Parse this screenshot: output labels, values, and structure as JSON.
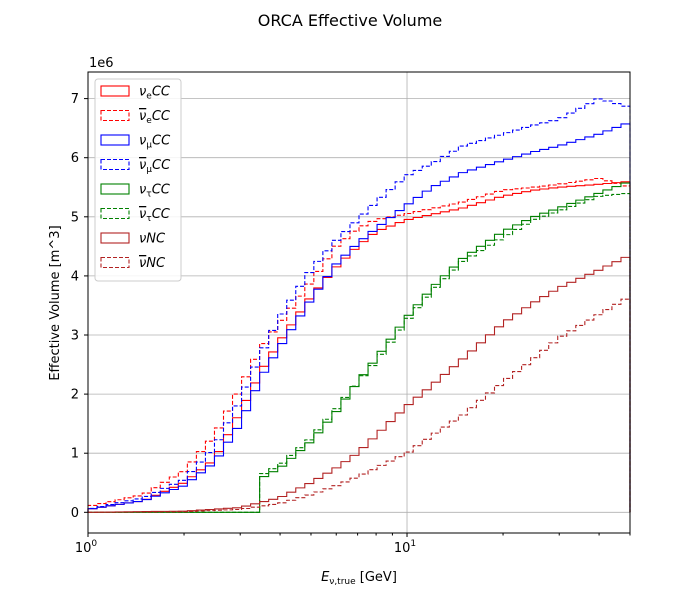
{
  "chart_data": {
    "type": "line",
    "title": "ORCA Effective Volume",
    "xlabel_main": "E",
    "xlabel_sub": "ν,true",
    "xlabel_unit": " [GeV]",
    "ylabel": "Effective Volume [m^3]",
    "y_multiplier_label": "1e6",
    "x_scale": "log",
    "xlim": [
      1,
      50
    ],
    "ylim": [
      -0.35,
      7.45
    ],
    "x_ticks": [
      {
        "value": 1,
        "base": "10",
        "exp": "0"
      },
      {
        "value": 10,
        "base": "10",
        "exp": "1"
      }
    ],
    "y_ticks": [
      0,
      1,
      2,
      3,
      4,
      5,
      6,
      7
    ],
    "grid": true,
    "legend_position": "upper-left",
    "series": [
      {
        "base": "ν",
        "sub": "e",
        "bar": false,
        "suffix": "CC",
        "color": "#ff0000",
        "dashed": false,
        "knots": [
          [
            1,
            0.05
          ],
          [
            1.5,
            0.2
          ],
          [
            2,
            0.5
          ],
          [
            2.5,
            0.9
          ],
          [
            3,
            1.7
          ],
          [
            3.5,
            2.4
          ],
          [
            4,
            2.9
          ],
          [
            5,
            3.65
          ],
          [
            6,
            4.15
          ],
          [
            7,
            4.5
          ],
          [
            8,
            4.75
          ],
          [
            10,
            4.95
          ],
          [
            15,
            5.15
          ],
          [
            20,
            5.35
          ],
          [
            25,
            5.45
          ],
          [
            30,
            5.5
          ],
          [
            40,
            5.55
          ],
          [
            50,
            5.6
          ]
        ]
      },
      {
        "base": "ν",
        "sub": "e",
        "bar": true,
        "suffix": "CC",
        "color": "#ff0000",
        "dashed": true,
        "knots": [
          [
            1,
            0.1
          ],
          [
            1.5,
            0.3
          ],
          [
            2,
            0.7
          ],
          [
            2.5,
            1.3
          ],
          [
            3,
            2.1
          ],
          [
            3.5,
            2.8
          ],
          [
            4,
            3.2
          ],
          [
            5,
            3.9
          ],
          [
            6,
            4.5
          ],
          [
            7,
            4.8
          ],
          [
            8,
            4.95
          ],
          [
            10,
            5.05
          ],
          [
            15,
            5.25
          ],
          [
            20,
            5.45
          ],
          [
            25,
            5.5
          ],
          [
            30,
            5.55
          ],
          [
            40,
            5.65
          ],
          [
            50,
            5.5
          ]
        ]
      },
      {
        "base": "ν",
        "sub": "μ",
        "bar": false,
        "suffix": "CC",
        "color": "#0000ff",
        "dashed": false,
        "knots": [
          [
            1,
            0.05
          ],
          [
            1.5,
            0.2
          ],
          [
            2,
            0.45
          ],
          [
            2.5,
            0.85
          ],
          [
            3,
            1.5
          ],
          [
            3.5,
            2.3
          ],
          [
            4,
            2.8
          ],
          [
            5,
            3.6
          ],
          [
            6,
            4.2
          ],
          [
            7,
            4.55
          ],
          [
            8,
            4.8
          ],
          [
            10,
            5.2
          ],
          [
            12,
            5.5
          ],
          [
            15,
            5.75
          ],
          [
            20,
            5.95
          ],
          [
            25,
            6.1
          ],
          [
            30,
            6.2
          ],
          [
            40,
            6.4
          ],
          [
            50,
            6.6
          ]
        ]
      },
      {
        "base": "ν",
        "sub": "μ",
        "bar": true,
        "suffix": "CC",
        "color": "#0000ff",
        "dashed": true,
        "knots": [
          [
            1,
            0.05
          ],
          [
            1.5,
            0.25
          ],
          [
            2,
            0.55
          ],
          [
            2.5,
            1.1
          ],
          [
            3,
            1.9
          ],
          [
            3.5,
            2.7
          ],
          [
            4,
            3.3
          ],
          [
            5,
            4.1
          ],
          [
            6,
            4.6
          ],
          [
            7,
            4.95
          ],
          [
            8,
            5.25
          ],
          [
            10,
            5.7
          ],
          [
            12,
            5.9
          ],
          [
            15,
            6.2
          ],
          [
            20,
            6.4
          ],
          [
            25,
            6.55
          ],
          [
            30,
            6.65
          ],
          [
            40,
            7.0
          ],
          [
            50,
            6.85
          ]
        ]
      },
      {
        "base": "ν",
        "sub": "τ",
        "bar": false,
        "suffix": "CC",
        "color": "#008000",
        "dashed": false,
        "knots": [
          [
            1,
            0.0
          ],
          [
            2,
            0.0
          ],
          [
            3.5,
            0.0
          ],
          [
            3.55,
            0.6
          ],
          [
            4,
            0.75
          ],
          [
            5,
            1.2
          ],
          [
            6,
            1.7
          ],
          [
            7,
            2.2
          ],
          [
            8,
            2.6
          ],
          [
            10,
            3.3
          ],
          [
            12,
            3.8
          ],
          [
            15,
            4.3
          ],
          [
            20,
            4.75
          ],
          [
            25,
            5.0
          ],
          [
            30,
            5.15
          ],
          [
            40,
            5.4
          ],
          [
            50,
            5.6
          ]
        ]
      },
      {
        "base": "ν",
        "sub": "τ",
        "bar": true,
        "suffix": "CC",
        "color": "#008000",
        "dashed": true,
        "knots": [
          [
            1,
            0.0
          ],
          [
            2,
            0.0
          ],
          [
            3.5,
            0.0
          ],
          [
            3.55,
            0.65
          ],
          [
            4,
            0.8
          ],
          [
            5,
            1.25
          ],
          [
            6,
            1.75
          ],
          [
            7,
            2.2
          ],
          [
            8,
            2.55
          ],
          [
            10,
            3.25
          ],
          [
            12,
            3.75
          ],
          [
            15,
            4.25
          ],
          [
            20,
            4.65
          ],
          [
            25,
            4.95
          ],
          [
            30,
            5.1
          ],
          [
            40,
            5.35
          ],
          [
            50,
            5.4
          ]
        ]
      },
      {
        "base": "ν",
        "sub": "",
        "bar": false,
        "suffix": "NC",
        "color": "#b22222",
        "dashed": false,
        "knots": [
          [
            1,
            0.0
          ],
          [
            2,
            0.02
          ],
          [
            3,
            0.08
          ],
          [
            4,
            0.25
          ],
          [
            5,
            0.5
          ],
          [
            6,
            0.75
          ],
          [
            7,
            1.0
          ],
          [
            8,
            1.3
          ],
          [
            10,
            1.8
          ],
          [
            12,
            2.15
          ],
          [
            15,
            2.6
          ],
          [
            20,
            3.2
          ],
          [
            25,
            3.55
          ],
          [
            30,
            3.8
          ],
          [
            40,
            4.1
          ],
          [
            50,
            4.35
          ]
        ]
      },
      {
        "base": "ν",
        "sub": "",
        "bar": true,
        "suffix": "NC",
        "color": "#b22222",
        "dashed": true,
        "knots": [
          [
            1,
            0.0
          ],
          [
            2,
            0.01
          ],
          [
            3,
            0.05
          ],
          [
            4,
            0.15
          ],
          [
            5,
            0.3
          ],
          [
            6,
            0.45
          ],
          [
            7,
            0.6
          ],
          [
            8,
            0.75
          ],
          [
            10,
            1.0
          ],
          [
            12,
            1.3
          ],
          [
            15,
            1.65
          ],
          [
            20,
            2.2
          ],
          [
            25,
            2.6
          ],
          [
            30,
            2.95
          ],
          [
            40,
            3.35
          ],
          [
            50,
            3.65
          ]
        ]
      }
    ]
  }
}
